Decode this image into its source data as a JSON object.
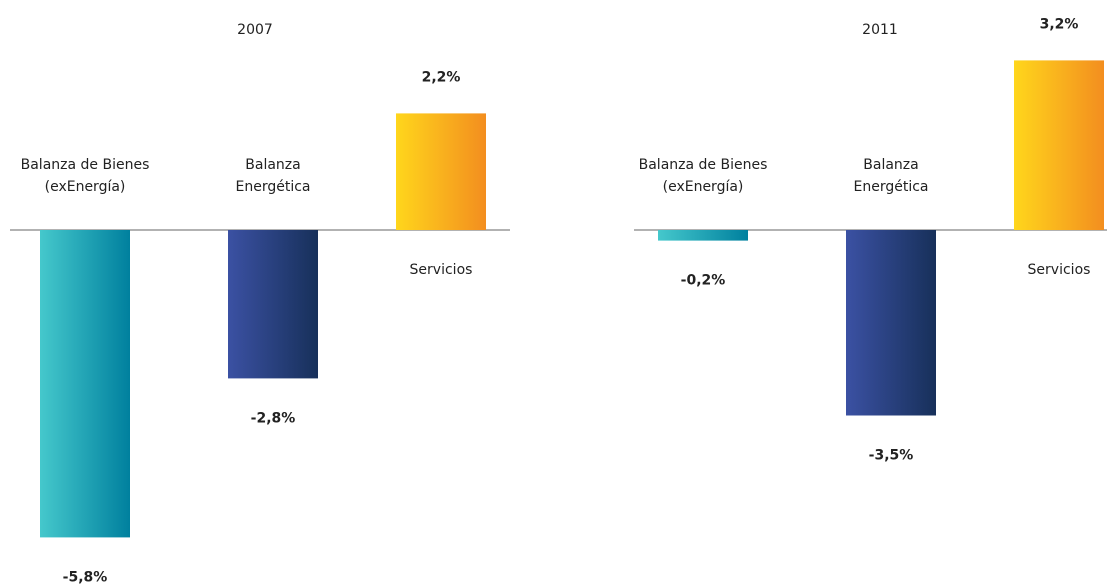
{
  "chart_data": [
    {
      "type": "bar",
      "title": "2007",
      "categories": [
        [
          "Balanza de Bienes",
          "(exEnergía)"
        ],
        [
          "Balanza",
          "Energética"
        ],
        [
          "Servicios"
        ]
      ],
      "values": [
        -5.8,
        -2.8,
        2.2
      ],
      "value_labels": [
        "-5,8%",
        "-2,8%",
        "2,2%"
      ],
      "colors": [
        [
          "#45c8cc",
          "#00809e"
        ],
        [
          "#3b51a3",
          "#17305a"
        ],
        [
          "#ffd61c",
          "#f38e1f"
        ]
      ]
    },
    {
      "type": "bar",
      "title": "2011",
      "categories": [
        [
          "Balanza de Bienes",
          "(exEnergía)"
        ],
        [
          "Balanza",
          "Energética"
        ],
        [
          "Servicios"
        ]
      ],
      "values": [
        -0.2,
        -3.5,
        3.2
      ],
      "value_labels": [
        "-0,2%",
        "-3,5%",
        "3,2%"
      ],
      "colors": [
        [
          "#45c8cc",
          "#00809e"
        ],
        [
          "#3b51a3",
          "#17305a"
        ],
        [
          "#ffd61c",
          "#f38e1f"
        ]
      ]
    }
  ]
}
